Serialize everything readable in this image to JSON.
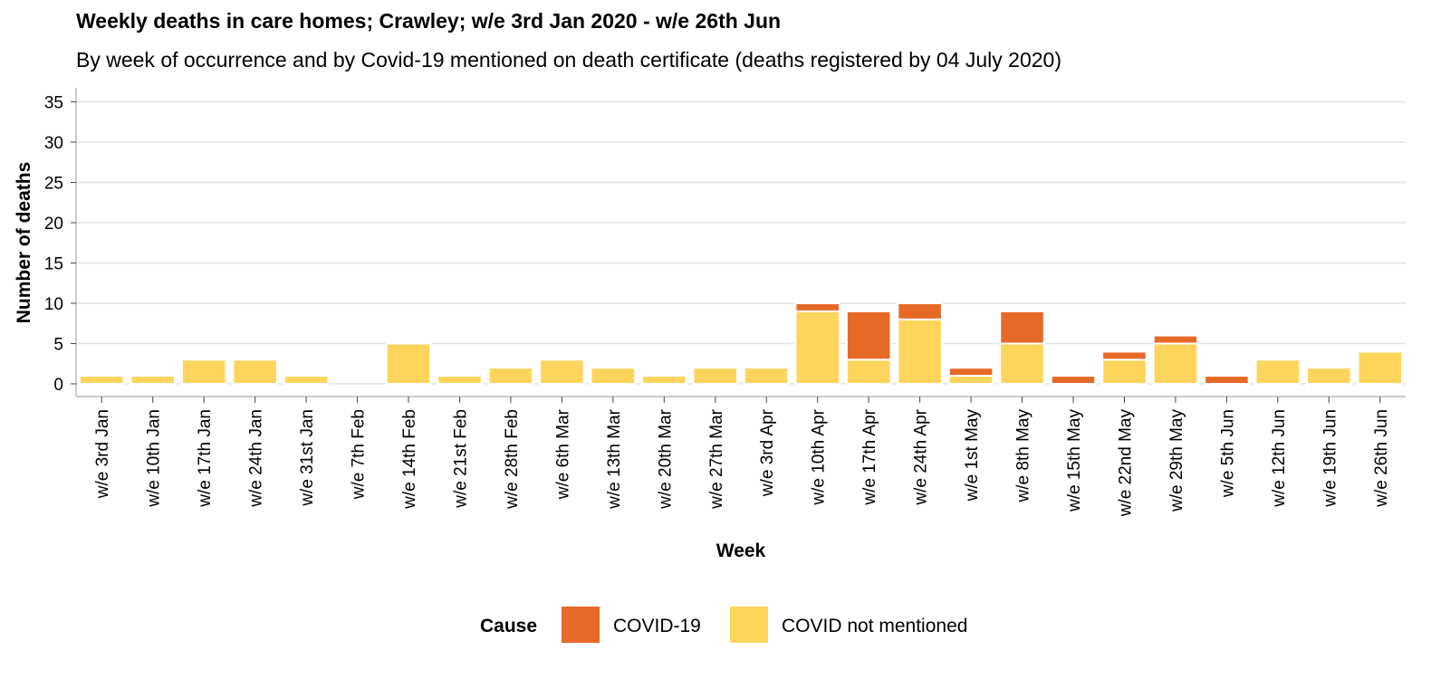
{
  "title": "Weekly deaths in care homes; Crawley; w/e 3rd Jan 2020 - w/e 26th Jun",
  "subtitle": "By week of occurrence and by Covid-19 mentioned on death certificate (deaths registered by 04 July 2020)",
  "chart_data": {
    "type": "bar",
    "stacked": true,
    "title": "Weekly deaths in care homes; Crawley; w/e 3rd Jan 2020 - w/e 26th Jun",
    "subtitle": "By week of occurrence and by Covid-19 mentioned on death certificate (deaths registered by 04 July 2020)",
    "xlabel": "Week",
    "ylabel": "Number of deaths",
    "ylim": [
      0,
      35
    ],
    "yticks": [
      0,
      5,
      10,
      15,
      20,
      25,
      30,
      35
    ],
    "grid": "horizontal",
    "legend": {
      "title": "Cause",
      "placement": "bottom"
    },
    "categories": [
      "w/e 3rd Jan",
      "w/e 10th Jan",
      "w/e 17th Jan",
      "w/e 24th Jan",
      "w/e 31st Jan",
      "w/e 7th Feb",
      "w/e 14th Feb",
      "w/e 21st Feb",
      "w/e 28th Feb",
      "w/e 6th Mar",
      "w/e 13th Mar",
      "w/e 20th Mar",
      "w/e 27th Mar",
      "w/e 3rd Apr",
      "w/e 10th Apr",
      "w/e 17th Apr",
      "w/e 24th Apr",
      "w/e 1st May",
      "w/e 8th May",
      "w/e 15th May",
      "w/e 22nd May",
      "w/e 29th May",
      "w/e 5th Jun",
      "w/e 12th Jun",
      "w/e 19th Jun",
      "w/e 26th Jun"
    ],
    "series": [
      {
        "name": "COVID not mentioned",
        "color": "#FDD45C",
        "values": [
          1,
          1,
          3,
          3,
          1,
          0,
          5,
          1,
          2,
          3,
          2,
          1,
          2,
          2,
          9,
          3,
          8,
          1,
          5,
          0,
          3,
          5,
          0,
          3,
          2,
          4
        ]
      },
      {
        "name": "COVID-19",
        "color": "#E66A27",
        "values": [
          0,
          0,
          0,
          0,
          0,
          0,
          0,
          0,
          0,
          0,
          0,
          0,
          0,
          0,
          1,
          6,
          2,
          1,
          4,
          1,
          1,
          1,
          1,
          0,
          0,
          0
        ]
      }
    ],
    "legend_entries": [
      {
        "name": "COVID-19",
        "color": "#E66A27"
      },
      {
        "name": "COVID not mentioned",
        "color": "#FDD45C"
      }
    ]
  }
}
